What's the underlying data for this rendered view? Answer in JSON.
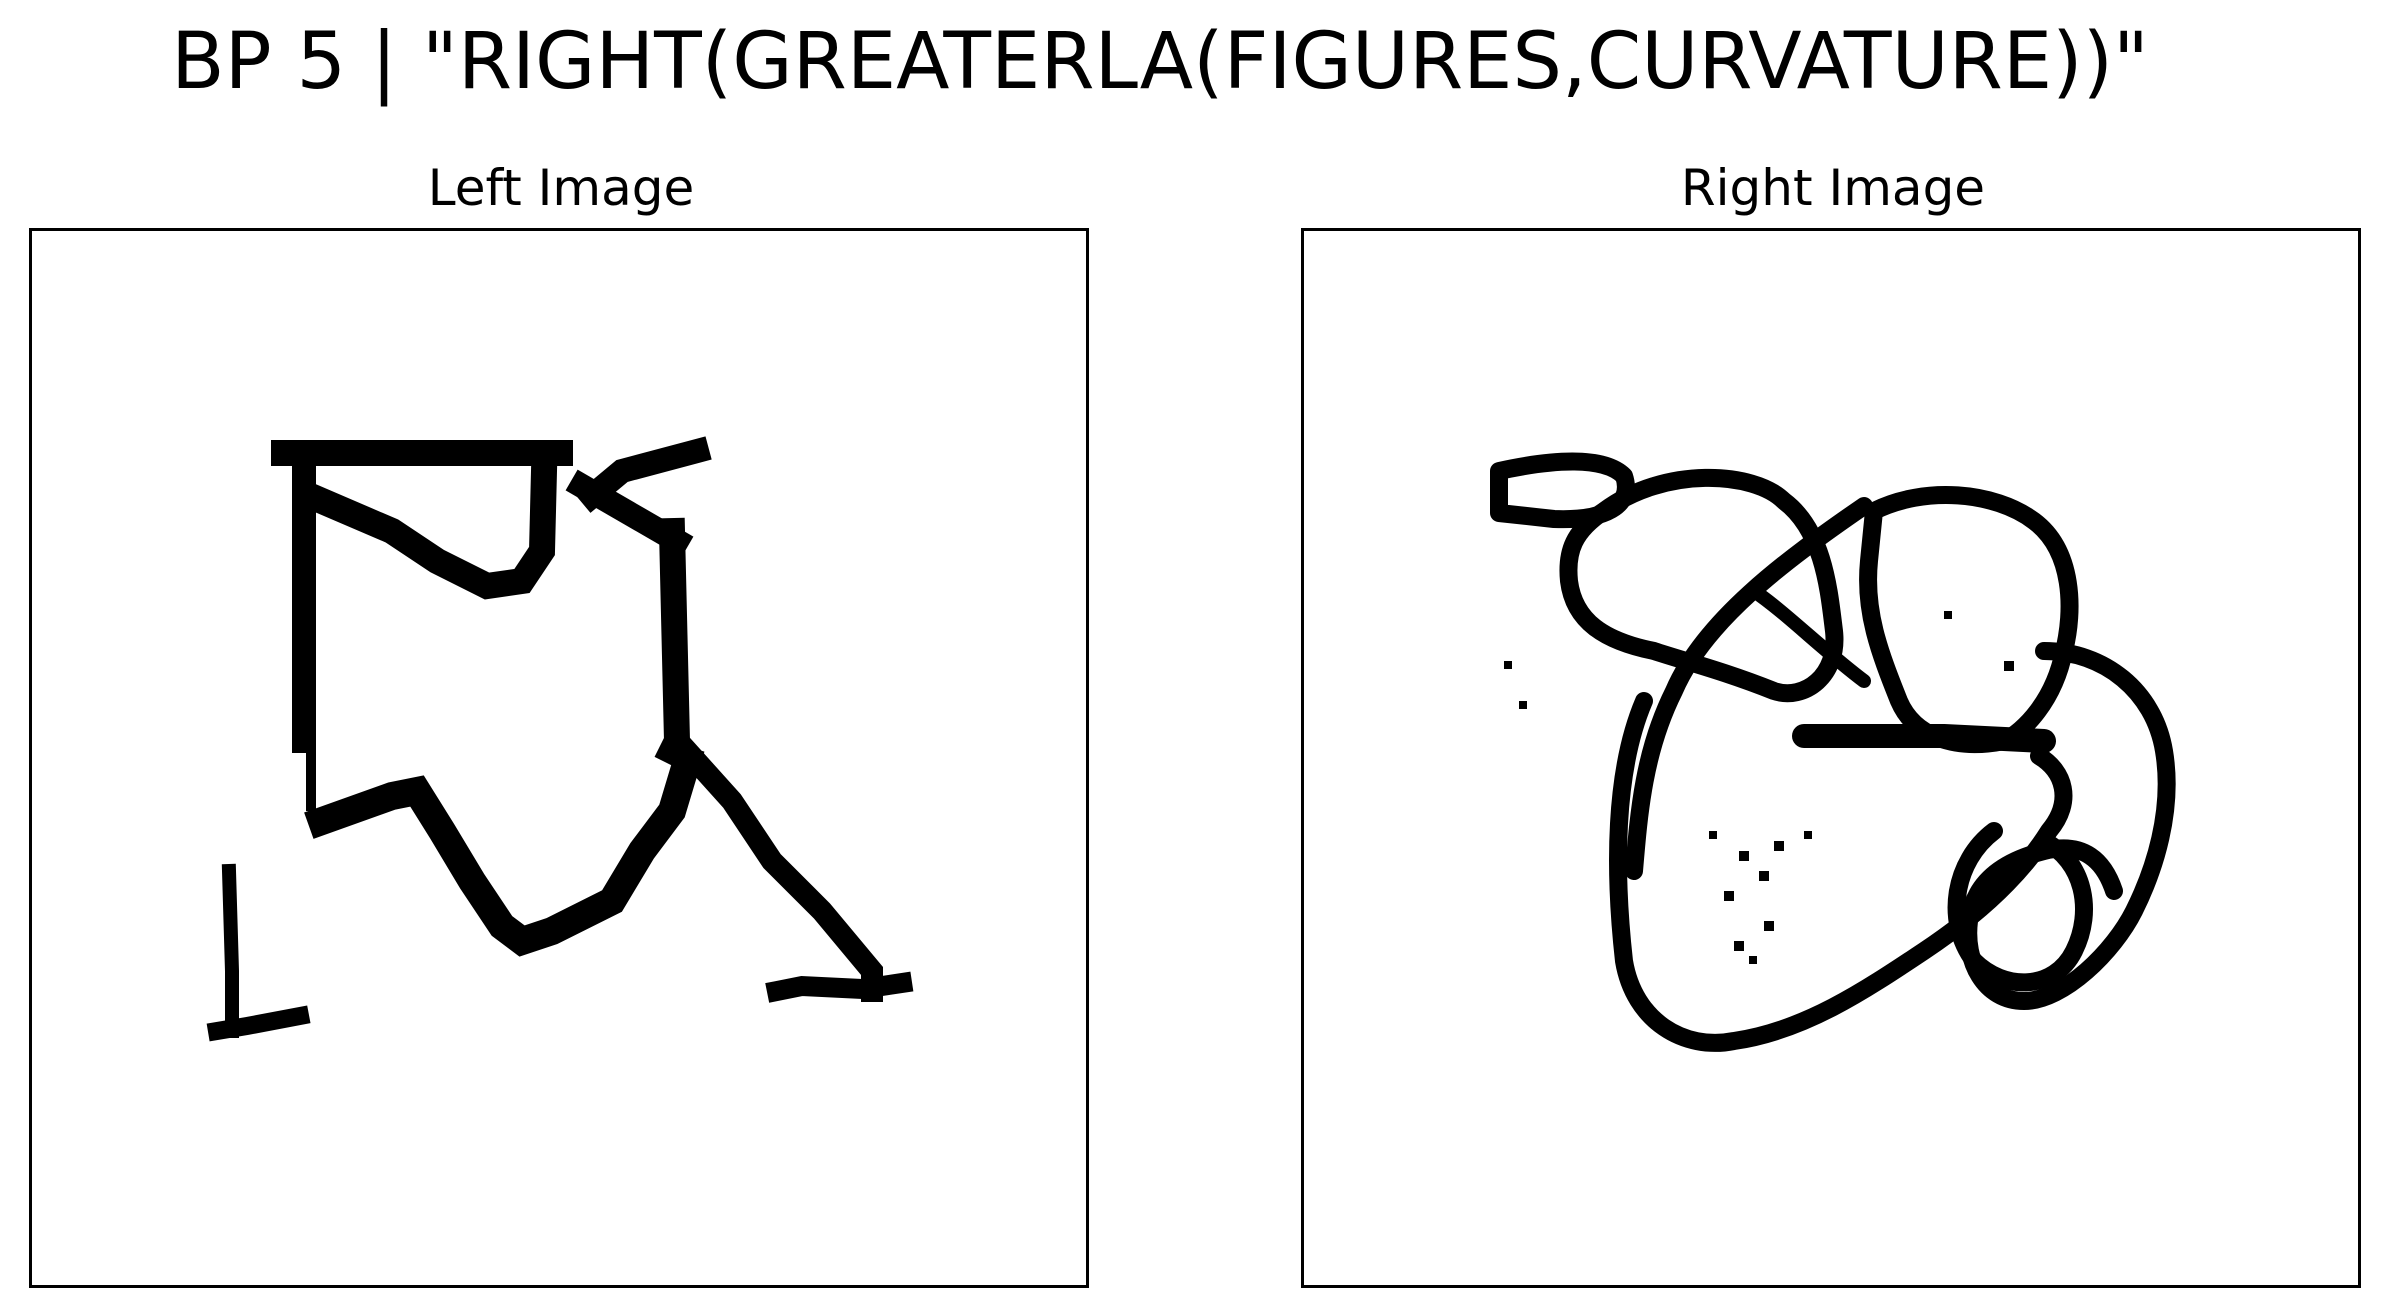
{
  "figure": {
    "title": "BP 5 | \"RIGHT(GREATERLA(FIGURES,CURVATURE))\""
  },
  "panels": {
    "left": {
      "title": "Left Image",
      "figure_style": "few strokes, mostly straight segments"
    },
    "right": {
      "title": "Right Image",
      "figure_style": "many overlapping curved loops"
    }
  },
  "colors": {
    "ink": "#000000",
    "background": "#ffffff"
  }
}
